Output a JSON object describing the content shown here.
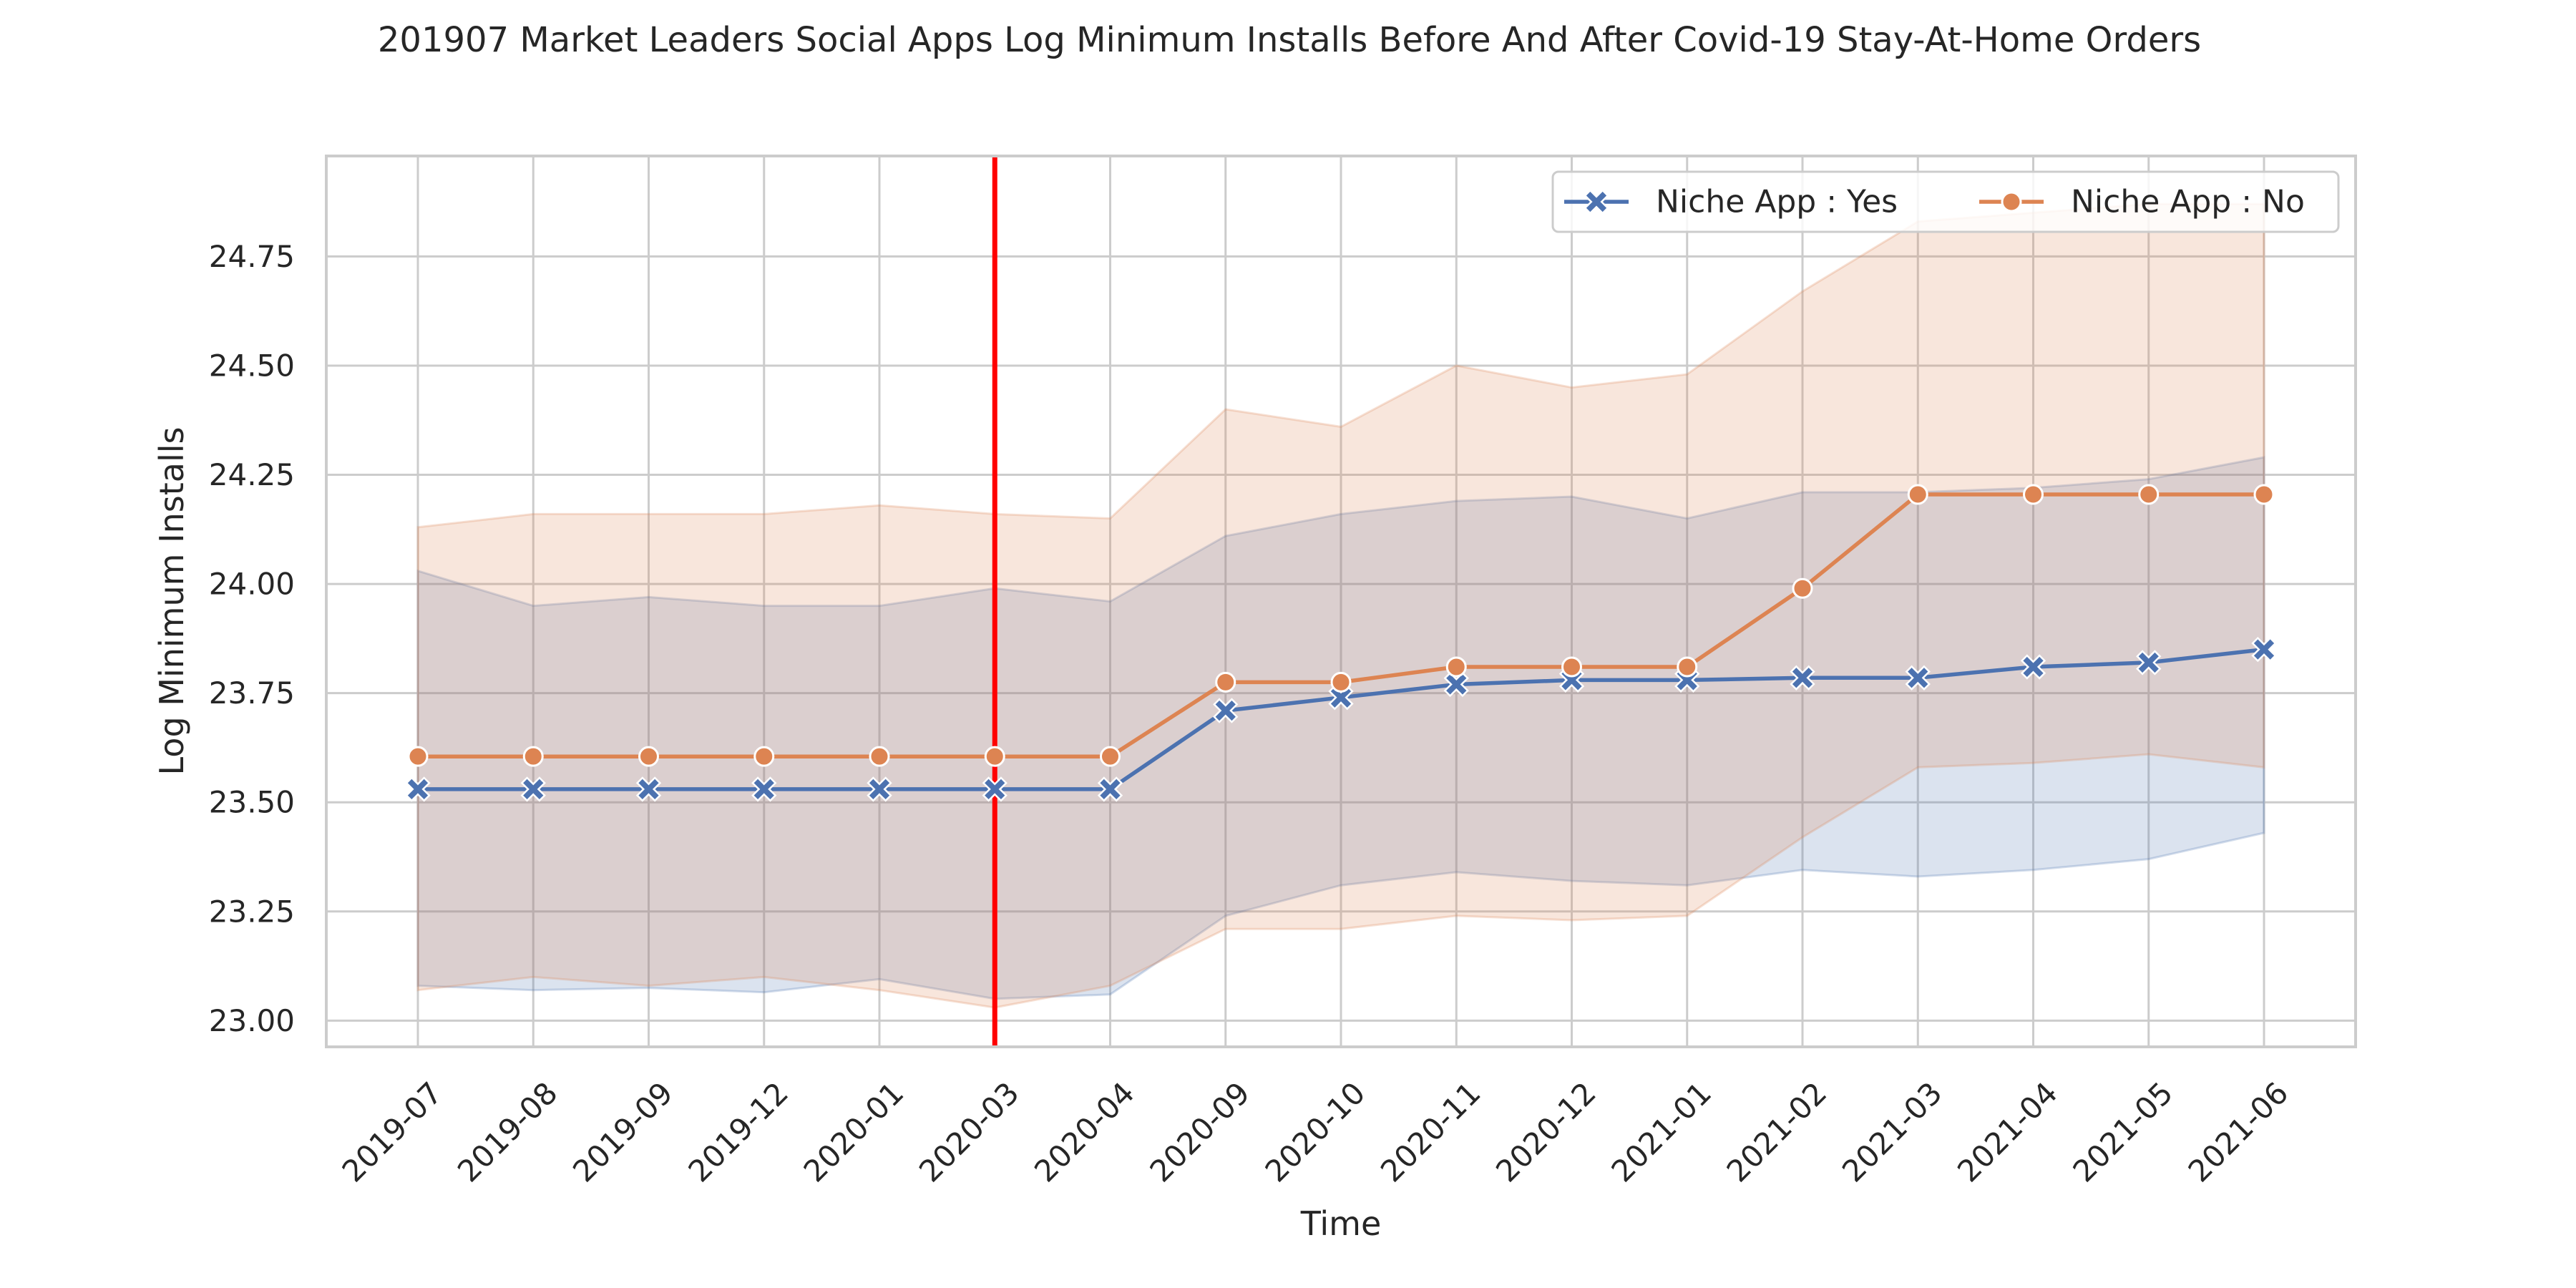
{
  "chart_data": {
    "type": "line",
    "title": "201907 Market Leaders Social Apps Log Minimum Installs Before And After Covid-19 Stay-At-Home Orders",
    "xlabel": "Time",
    "ylabel": "Log Minimum Installs",
    "categories": [
      "2019-07",
      "2019-08",
      "2019-09",
      "2019-12",
      "2020-01",
      "2020-03",
      "2020-04",
      "2020-09",
      "2020-10",
      "2020-11",
      "2020-12",
      "2021-01",
      "2021-02",
      "2021-03",
      "2021-04",
      "2021-05",
      "2021-06"
    ],
    "ylim": [
      22.94,
      24.98
    ],
    "yticks": [
      23.0,
      23.25,
      23.5,
      23.75,
      24.0,
      24.25,
      24.5,
      24.75
    ],
    "ytick_labels": [
      "23.00",
      "23.25",
      "23.50",
      "23.75",
      "24.00",
      "24.25",
      "24.50",
      "24.75"
    ],
    "grid": true,
    "legend_position": "top-right",
    "legend_columns": 2,
    "vertical_marker": {
      "category": "2020-03",
      "color": "#ff0000"
    },
    "series": [
      {
        "name": "Niche App : Yes",
        "color": "#4c72b0",
        "marker": "x",
        "values": [
          23.53,
          23.53,
          23.53,
          23.53,
          23.53,
          23.53,
          23.53,
          23.71,
          23.74,
          23.77,
          23.78,
          23.78,
          23.785,
          23.785,
          23.81,
          23.82,
          23.85
        ],
        "ci_upper": [
          24.03,
          23.95,
          23.97,
          23.95,
          23.95,
          23.99,
          23.96,
          24.11,
          24.16,
          24.19,
          24.2,
          24.15,
          24.21,
          24.21,
          24.22,
          24.24,
          24.29
        ],
        "ci_lower": [
          23.08,
          23.07,
          23.075,
          23.065,
          23.095,
          23.05,
          23.06,
          23.24,
          23.31,
          23.34,
          23.32,
          23.31,
          23.345,
          23.33,
          23.345,
          23.37,
          23.43
        ]
      },
      {
        "name": "Niche App : No",
        "color": "#dd8452",
        "marker": "o",
        "values": [
          23.605,
          23.605,
          23.605,
          23.605,
          23.605,
          23.605,
          23.605,
          23.775,
          23.775,
          23.81,
          23.81,
          23.81,
          23.99,
          24.205,
          24.205,
          24.205,
          24.205
        ],
        "ci_upper": [
          24.13,
          24.16,
          24.16,
          24.16,
          24.18,
          24.16,
          24.15,
          24.4,
          24.36,
          24.5,
          24.45,
          24.48,
          24.67,
          24.83,
          24.85,
          24.87,
          24.87
        ],
        "ci_lower": [
          23.07,
          23.1,
          23.08,
          23.1,
          23.07,
          23.03,
          23.08,
          23.21,
          23.21,
          23.24,
          23.23,
          23.24,
          23.42,
          23.58,
          23.59,
          23.61,
          23.58
        ]
      }
    ]
  }
}
